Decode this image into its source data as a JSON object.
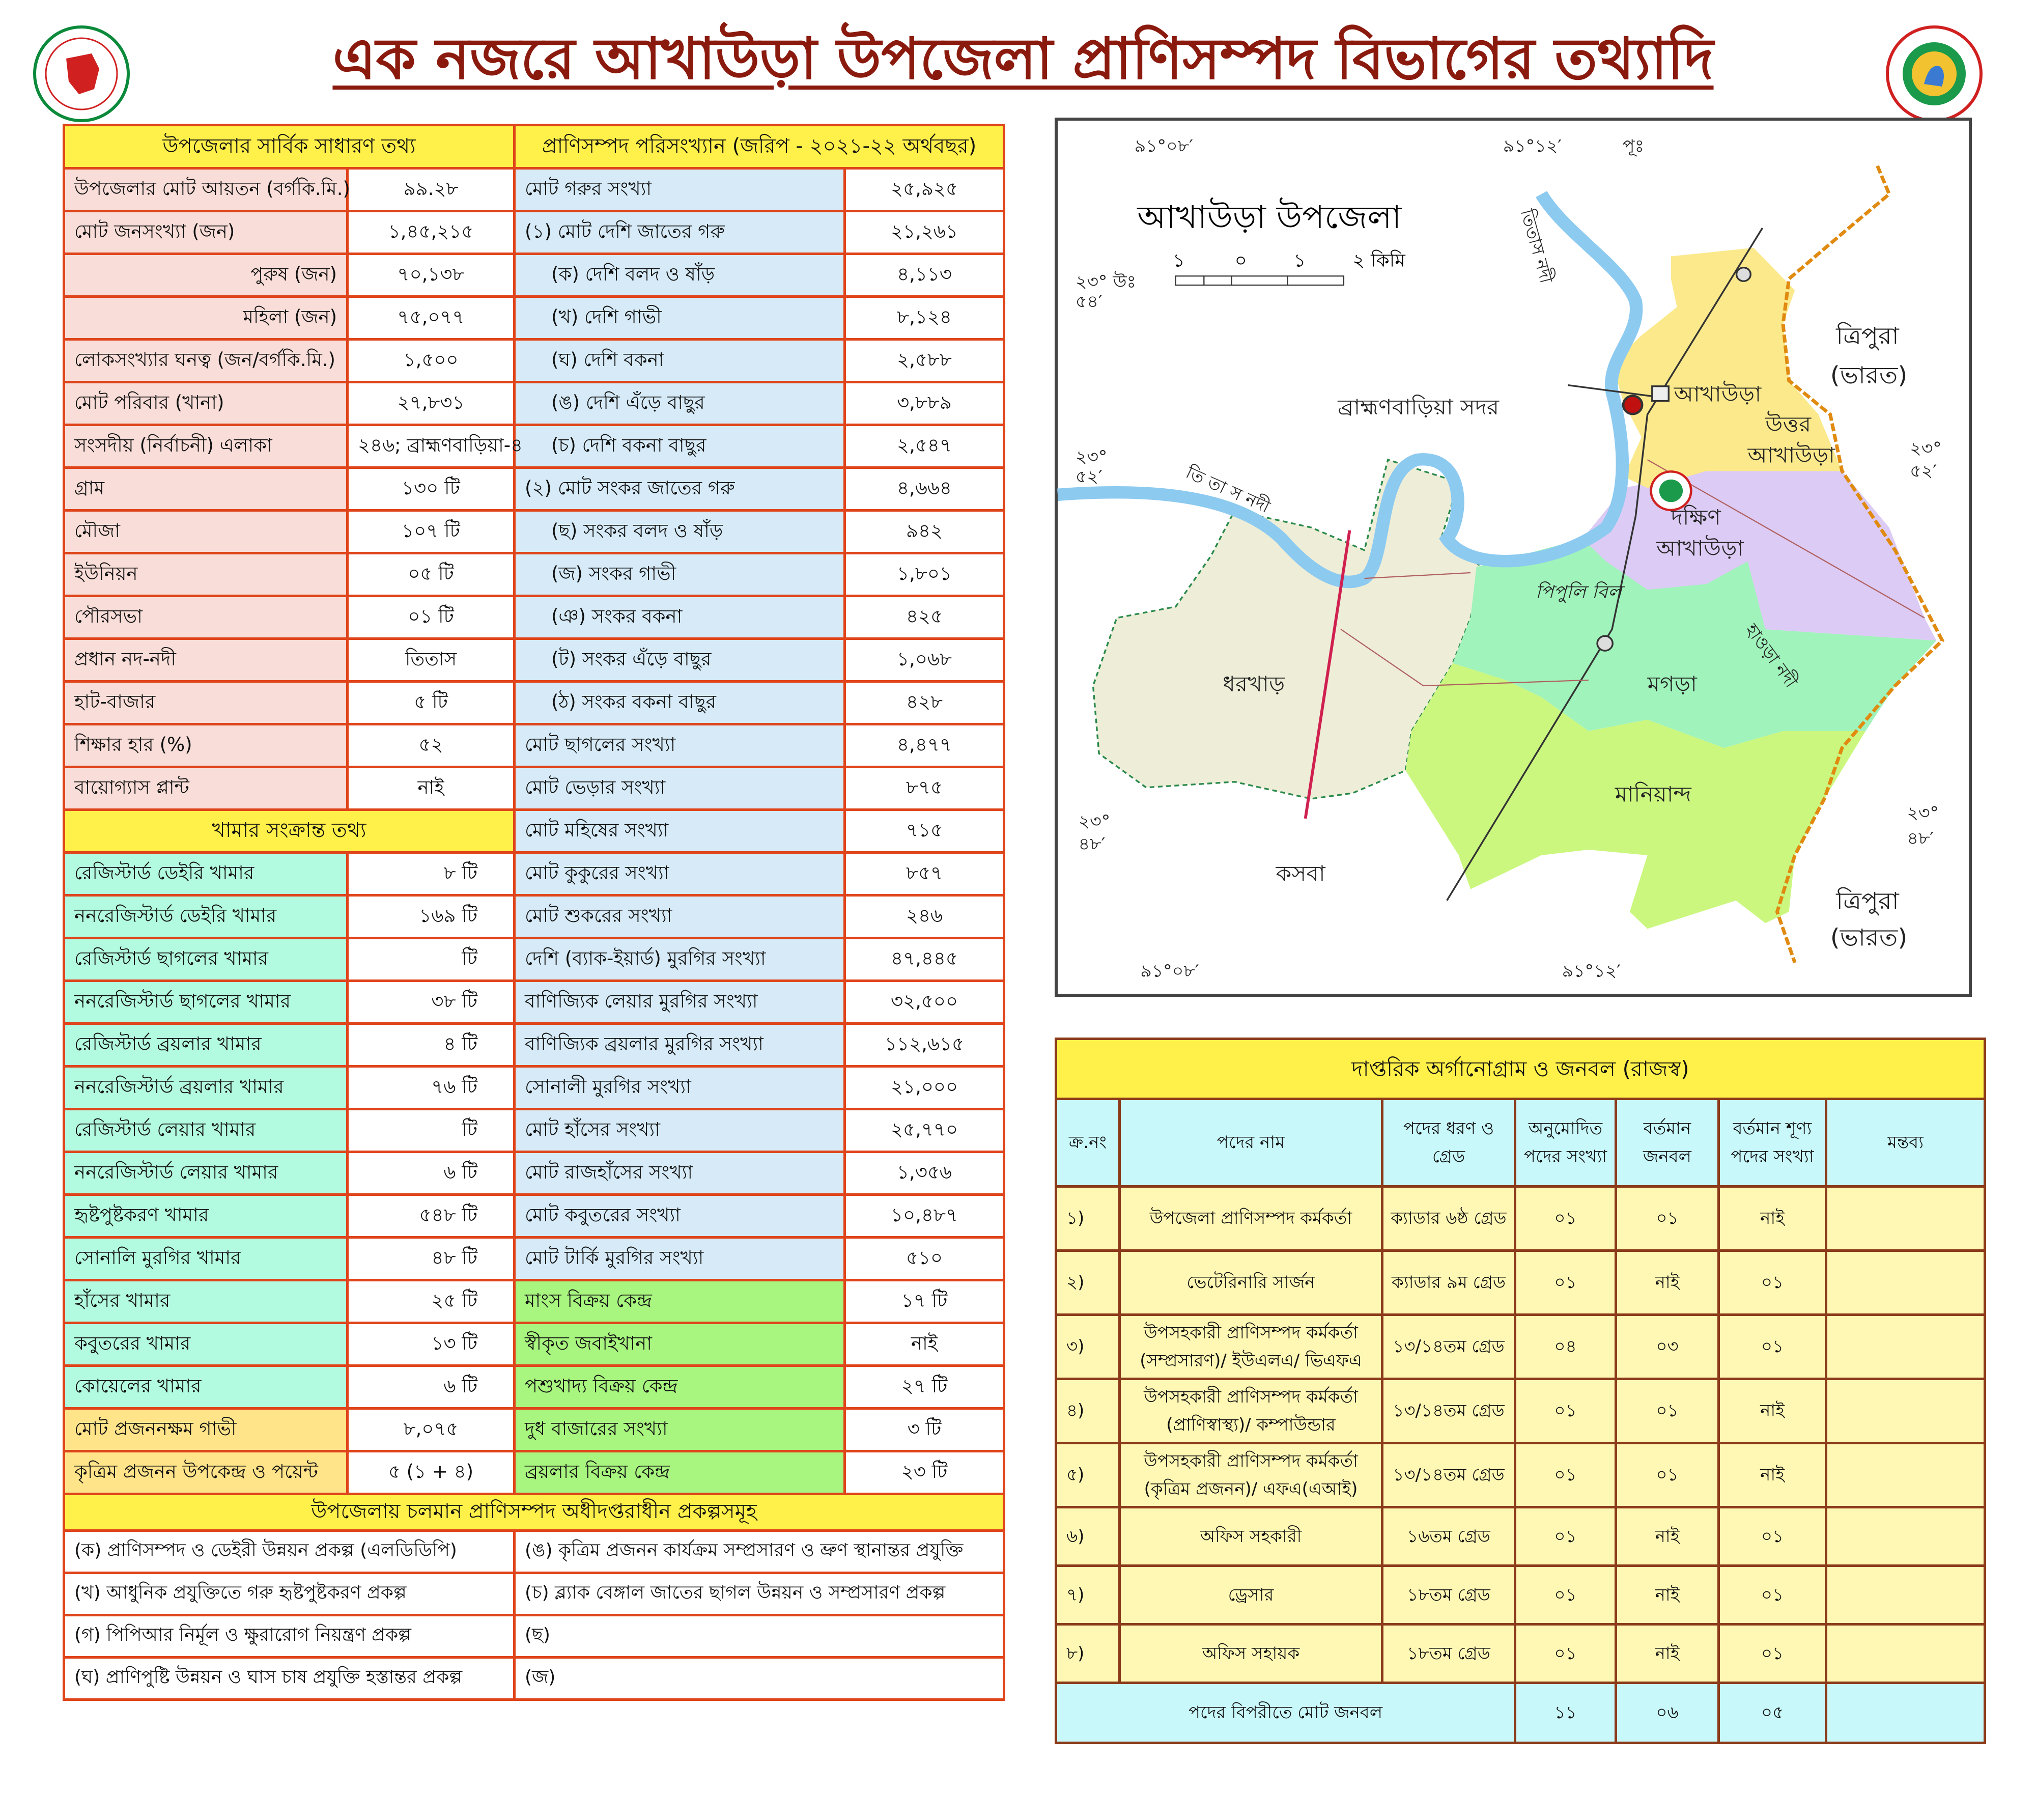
{
  "title": "এক নজরে আখাউড়া উপজেলা প্রাণিসম্পদ বিভাগের তথ্যাদি",
  "colors": {
    "title": "#8b1a0e",
    "border": "#e0441a",
    "header": "#fff04a",
    "general": "#f8ddd8",
    "farm": "#b3fbe0",
    "stat": "#d6ebf7",
    "market": "#a8f57f",
    "breed": "#ffe48a"
  },
  "logos": {
    "left": "government-seal",
    "right": "livestock-department-logo"
  },
  "general": {
    "header": "উপজেলার সার্বিক সাধারণ তথ্য",
    "items": [
      {
        "label": "উপজেলার মোট আয়তন (বর্গকি.মি.)",
        "value": "৯৯.২৮"
      },
      {
        "label": "মোট জনসংখ্যা (জন)",
        "value": "১,৪৫,২১৫"
      },
      {
        "label": "পুরুষ (জন)",
        "value": "৭০,১৩৮",
        "sub": true
      },
      {
        "label": "মহিলা (জন)",
        "value": "৭৫,০৭৭",
        "sub": true
      },
      {
        "label": "লোকসংখ্যার ঘনত্ব (জন/বর্গকি.মি.)",
        "value": "১,৫০০"
      },
      {
        "label": "মোট পরিবার (খানা)",
        "value": "২৭,৮৩১"
      },
      {
        "label": "সংসদীয় (নির্বাচনী) এলাকা",
        "value": "২৪৬; ব্রাহ্মণবাড়িয়া-৪"
      },
      {
        "label": "গ্রাম",
        "value": "১৩০ টি"
      },
      {
        "label": "মৌজা",
        "value": "১০৭ টি"
      },
      {
        "label": "ইউনিয়ন",
        "value": "০৫ টি"
      },
      {
        "label": "পৌরসভা",
        "value": "০১ টি"
      },
      {
        "label": "প্রধান নদ-নদী",
        "value": "তিতাস"
      },
      {
        "label": "হাট-বাজার",
        "value": "৫ টি"
      },
      {
        "label": "শিক্ষার হার (%)",
        "value": "৫২"
      },
      {
        "label": "বায়োগ্যাস প্লান্ট",
        "value": "নাই"
      }
    ]
  },
  "farms": {
    "header": "খামার সংক্রান্ত তথ্য",
    "items": [
      {
        "label": "রেজিস্টার্ড ডেইরি খামার",
        "value": "৮ টি"
      },
      {
        "label": "ননরেজিস্টার্ড ডেইরি খামার",
        "value": "১৬৯ টি"
      },
      {
        "label": "রেজিস্টার্ড ছাগলের খামার",
        "value": "টি"
      },
      {
        "label": "ননরেজিস্টার্ড ছাগলের খামার",
        "value": "৩৮ টি"
      },
      {
        "label": "রেজিস্টার্ড ব্রয়লার খামার",
        "value": "৪ টি"
      },
      {
        "label": "ননরেজিস্টার্ড ব্রয়লার খামার",
        "value": "৭৬ টি"
      },
      {
        "label": "রেজিস্টার্ড লেয়ার খামার",
        "value": "টি"
      },
      {
        "label": "ননরেজিস্টার্ড লেয়ার খামার",
        "value": "৬ টি"
      },
      {
        "label": "হৃষ্টপুষ্টকরণ খামার",
        "value": "৫৪৮ টি"
      },
      {
        "label": "সোনালি মুরগির খামার",
        "value": "৪৮ টি"
      },
      {
        "label": "হাঁসের খামার",
        "value": "২৫ টি"
      },
      {
        "label": "কবুতরের খামার",
        "value": "১৩ টি"
      },
      {
        "label": "কোয়েলের খামার",
        "value": "৬ টি"
      },
      {
        "label": "মোট প্রজননক্ষম গাভী",
        "value": "৮,০৭৫",
        "kind": "breed"
      },
      {
        "label": "কৃত্রিম প্রজনন উপকেন্দ্র ও পয়েন্ট",
        "value": "৫ (১ + ৪)",
        "kind": "breed"
      }
    ]
  },
  "livestock": {
    "header": "প্রাণিসম্পদ পরিসংখ্যান (জরিপ - ২০২১-২২ অর্থবছর)",
    "items": [
      {
        "label": "মোট গরুর সংখ্যা",
        "value": "২৫,৯২৫"
      },
      {
        "label": "(১) মোট দেশি জাতের গরু",
        "value": "২১,২৬১"
      },
      {
        "label": "(ক) দেশি বলদ ও ষাঁড়",
        "value": "৪,১১৩",
        "sub": true
      },
      {
        "label": "(খ) দেশি গাভী",
        "value": "৮,১২৪",
        "sub": true
      },
      {
        "label": "(ঘ) দেশি বকনা",
        "value": "২,৫৮৮",
        "sub": true
      },
      {
        "label": "(ঙ) দেশি এঁড়ে বাছুর",
        "value": "৩,৮৮৯",
        "sub": true
      },
      {
        "label": "(চ) দেশি বকনা বাছুর",
        "value": "২,৫৪৭",
        "sub": true
      },
      {
        "label": "(২) মোট সংকর জাতের গরু",
        "value": "৪,৬৬৪"
      },
      {
        "label": "(ছ) সংকর বলদ ও ষাঁড়",
        "value": "৯৪২",
        "sub": true
      },
      {
        "label": "(জ) সংকর গাভী",
        "value": "১,৮০১",
        "sub": true
      },
      {
        "label": "(ঞ) সংকর বকনা",
        "value": "৪২৫",
        "sub": true
      },
      {
        "label": "(ট) সংকর এঁড়ে বাছুর",
        "value": "১,০৬৮",
        "sub": true
      },
      {
        "label": "(ঠ) সংকর বকনা বাছুর",
        "value": "৪২৮",
        "sub": true
      },
      {
        "label": "মোট ছাগলের সংখ্যা",
        "value": "৪,৪৭৭"
      },
      {
        "label": "মোট ভেড়ার সংখ্যা",
        "value": "৮৭৫"
      },
      {
        "label": "মোট মহিষের সংখ্যা",
        "value": "৭১৫"
      },
      {
        "label": "মোট কুকুরের সংখ্যা",
        "value": "৮৫৭"
      },
      {
        "label": "মোট শুকরের সংখ্যা",
        "value": "২৪৬"
      },
      {
        "label": "দেশি (ব্যাক-ইয়ার্ড) মুরগির সংখ্যা",
        "value": "৪৭,৪৪৫"
      },
      {
        "label": "বাণিজ্যিক লেয়ার মুরগির সংখ্যা",
        "value": "৩২,৫০০"
      },
      {
        "label": "বাণিজ্যিক ব্রয়লার মুরগির সংখ্যা",
        "value": "১১২,৬১৫"
      },
      {
        "label": "সোনালী মুরগির সংখ্যা",
        "value": "২১,০০০"
      },
      {
        "label": "মোট হাঁসের সংখ্যা",
        "value": "২৫,৭৭০"
      },
      {
        "label": "মোট রাজহাঁসের সংখ্যা",
        "value": "১,৩৫৬"
      },
      {
        "label": "মোট কবুতরের সংখ্যা",
        "value": "১০,৪৮৭"
      },
      {
        "label": "মোট টার্কি মুরগির সংখ্যা",
        "value": "৫১০"
      },
      {
        "label": "মাংস বিক্রয় কেন্দ্র",
        "value": "১৭ টি",
        "kind": "market"
      },
      {
        "label": "স্বীকৃত জবাইখানা",
        "value": "নাই",
        "kind": "market"
      },
      {
        "label": "পশুখাদ্য বিক্রয় কেন্দ্র",
        "value": "২৭ টি",
        "kind": "market"
      },
      {
        "label": "দুধ বাজারের সংখ্যা",
        "value": "৩ টি",
        "kind": "market"
      },
      {
        "label": "ব্রয়লার বিক্রয় কেন্দ্র",
        "value": "২৩ টি",
        "kind": "market"
      }
    ]
  },
  "projects": {
    "header": "উপজেলায় চলমান প্রাণিসম্পদ অধীদপ্তরাধীন প্রকল্পসমূহ",
    "left": [
      "(ক) প্রাণিসম্পদ ও ডেইরী উন্নয়ন প্রকল্প (এলডিডিপি)",
      "(খ) আধুনিক প্রযুক্তিতে গরু হৃষ্টপুষ্টকরণ প্রকল্প",
      "(গ) পিপিআর নির্মূল ও ক্ষুরারোগ নিয়ন্ত্রণ প্রকল্প",
      "(ঘ) প্রাণিপুষ্টি উন্নয়ন ও ঘাস চাষ প্রযুক্তি হস্তান্তর প্রকল্প"
    ],
    "right": [
      "(ঙ) কৃত্রিম প্রজনন কার্যক্রম সম্প্রসারণ ও ভ্রুণ স্থানান্তর প্রযুক্তি",
      "(চ) ব্ল্যাক বেঙ্গাল জাতের ছাগল উন্নয়ন ও সম্প্রসারণ প্রকল্প",
      "(ছ)",
      "(জ)"
    ]
  },
  "map": {
    "title": "আখাউড়া উপজেলা",
    "scale": {
      "ticks": [
        "১",
        "০",
        "১",
        "২ কিমি"
      ]
    },
    "coords": {
      "lon_left": "৯১°০৮′",
      "lon_right": "৯১°১২′",
      "east": "পূঃ",
      "lat_top": "২৩° উঃ",
      "lat_top_min": "৫৪′",
      "lat_mid": "২৩°",
      "lat_mid_min": "৫২′",
      "lat_bot": "২৩°",
      "lat_bot_min": "৪৮′"
    },
    "regions": {
      "uttar1": "উত্তর",
      "uttar2": "আখাউড়া",
      "dakshin1": "দক্ষিণ",
      "dakshin2": "আখাউড়া",
      "mogra": "মগড়া",
      "maniyand": "মানিয়ান্দ",
      "dharkhar": "ধরখাড়"
    },
    "places": {
      "akhaura": "আখাউড়া",
      "brahmanbaria": "ব্রাহ্মণবাড়িয়া সদর",
      "kasba": "কসবা",
      "tripura": "ত্রিপুরা",
      "india": "(ভারত)",
      "pipuli": "পিপুলি বিল",
      "titas_w": "তি তা স নদী",
      "titas_n": "তিতাস নদী",
      "haora": "হাওড়া নদী"
    },
    "colors": {
      "uttar": "#fbe98c",
      "dakshin": "#dccbf4",
      "mogra": "#9ff3bb",
      "maniyand": "#cbf77f",
      "dharkhar": "#eeeed8",
      "river": "#8ccaf0",
      "border": "#e08a10"
    }
  },
  "staff": {
    "title": "দাপ্তরিক অর্গানোগ্রাম ও জনবল (রাজস্ব)",
    "headers": [
      "ক্র.নং",
      "পদের নাম",
      "পদের ধরণ ও গ্রেড",
      "অনুমোদিত পদের সংখ্যা",
      "বর্তমান জনবল",
      "বর্তমান শূণ্য পদের সংখ্যা",
      "মন্তব্য"
    ],
    "rows": [
      {
        "sn": "১)",
        "name": "উপজেলা প্রাণিসম্পদ কর্মকর্তা",
        "grade": "ক্যাডার ৬ষ্ঠ গ্রেড",
        "approved": "০১",
        "current": "০১",
        "vacant": "নাই",
        "remark": ""
      },
      {
        "sn": "২)",
        "name": "ভেটেরিনারি সার্জন",
        "grade": "ক্যাডার ৯ম গ্রেড",
        "approved": "০১",
        "current": "নাই",
        "vacant": "০১",
        "remark": ""
      },
      {
        "sn": "৩)",
        "name": "উপসহকারী প্রাণিসম্পদ কর্মকর্তা (সম্প্রসারণ)/ ইউএলএ/ ভিএফএ",
        "grade": "১৩/১৪তম গ্রেড",
        "approved": "০৪",
        "current": "০৩",
        "vacant": "০১",
        "remark": ""
      },
      {
        "sn": "৪)",
        "name": "উপসহকারী প্রাণিসম্পদ কর্মকর্তা (প্রাণিস্বাস্থ্য)/ কম্পাউন্ডার",
        "grade": "১৩/১৪তম গ্রেড",
        "approved": "০১",
        "current": "০১",
        "vacant": "নাই",
        "remark": ""
      },
      {
        "sn": "৫)",
        "name": "উপসহকারী প্রাণিসম্পদ কর্মকর্তা (কৃত্রিম প্রজনন)/ এফএ(এআই)",
        "grade": "১৩/১৪তম গ্রেড",
        "approved": "০১",
        "current": "০১",
        "vacant": "নাই",
        "remark": ""
      },
      {
        "sn": "৬)",
        "name": "অফিস সহকারী",
        "grade": "১৬তম গ্রেড",
        "approved": "০১",
        "current": "নাই",
        "vacant": "০১",
        "remark": ""
      },
      {
        "sn": "৭)",
        "name": "ড্রেসার",
        "grade": "১৮তম গ্রেড",
        "approved": "০১",
        "current": "নাই",
        "vacant": "০১",
        "remark": ""
      },
      {
        "sn": "৮)",
        "name": "অফিস সহায়ক",
        "grade": "১৮তম গ্রেড",
        "approved": "০১",
        "current": "নাই",
        "vacant": "০১",
        "remark": ""
      }
    ],
    "total": {
      "label": "পদের বিপরীতে মোট জনবল",
      "approved": "১১",
      "current": "০৬",
      "vacant": "০৫",
      "remark": ""
    }
  }
}
